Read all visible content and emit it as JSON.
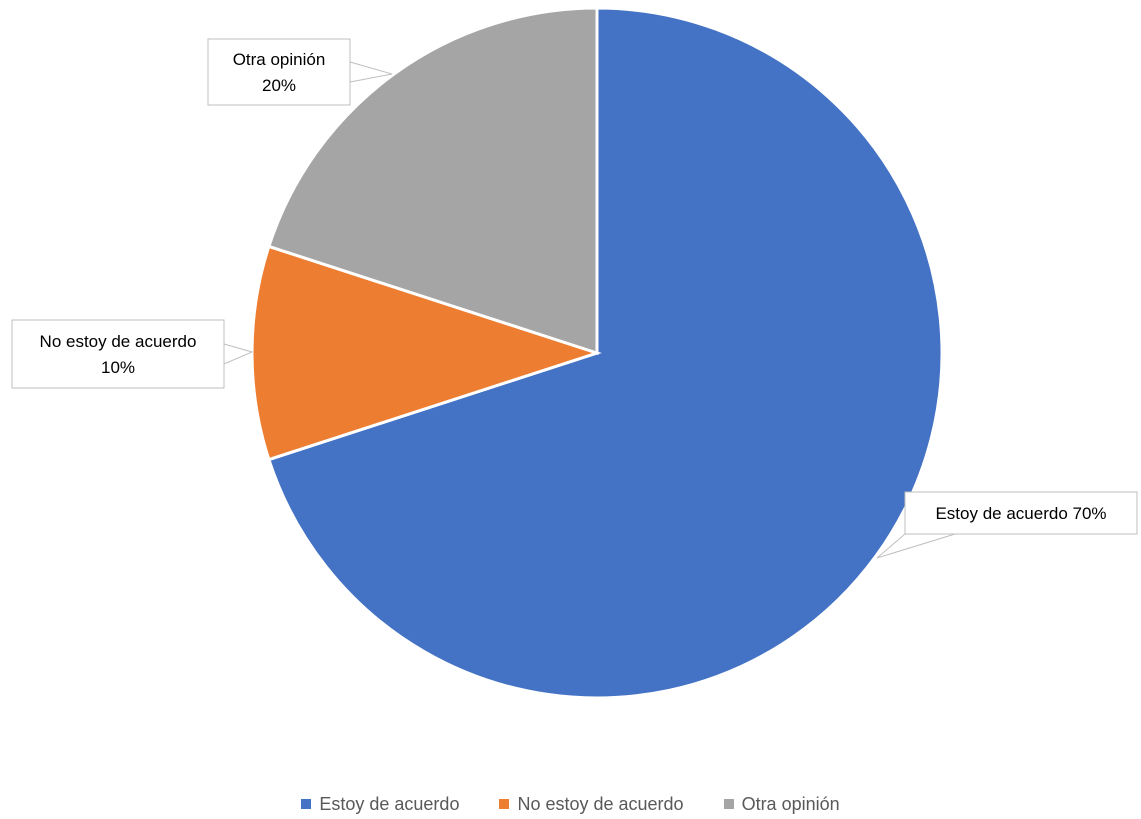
{
  "chart_data": {
    "type": "pie",
    "title": "",
    "slices": [
      {
        "label": "Estoy de acuerdo",
        "value": 70,
        "color": "#4472C4",
        "data_label": [
          "Estoy de acuerdo 70%"
        ]
      },
      {
        "label": "No estoy de acuerdo",
        "value": 10,
        "color": "#ED7D31",
        "data_label": [
          "No estoy de acuerdo",
          "10%"
        ]
      },
      {
        "label": "Otra opinión",
        "value": 20,
        "color": "#A5A5A5",
        "data_label": [
          "Otra opinión",
          "20%"
        ]
      }
    ],
    "start_angle_deg": 0,
    "direction": "clockwise",
    "legend_position": "bottom"
  },
  "legend": {
    "items": [
      {
        "label": "Estoy de acuerdo",
        "color": "#4472C4"
      },
      {
        "label": "No estoy de acuerdo",
        "color": "#ED7D31"
      },
      {
        "label": "Otra opinión",
        "color": "#A5A5A5"
      }
    ]
  }
}
